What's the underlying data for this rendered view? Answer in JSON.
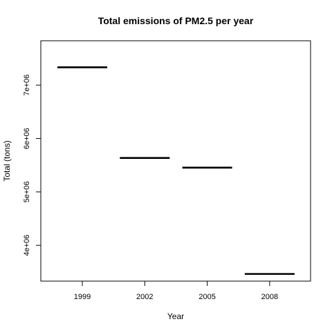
{
  "chart_data": {
    "type": "bar",
    "title": "Total emissions of PM2.5 per year",
    "xlabel": "Year",
    "ylabel": "Total (tons)",
    "categories": [
      "1999",
      "2002",
      "2005",
      "2008"
    ],
    "values": [
      7332967,
      5635780,
      5454703,
      3464206
    ],
    "ylim": [
      3330000,
      7830000
    ],
    "yticks": [
      4000000,
      5000000,
      6000000,
      7000000
    ],
    "ytick_labels": [
      "4e+06",
      "5e+06",
      "6e+06",
      "7e+06"
    ],
    "grid": false,
    "legend": "none",
    "mark_color": "#000000"
  }
}
